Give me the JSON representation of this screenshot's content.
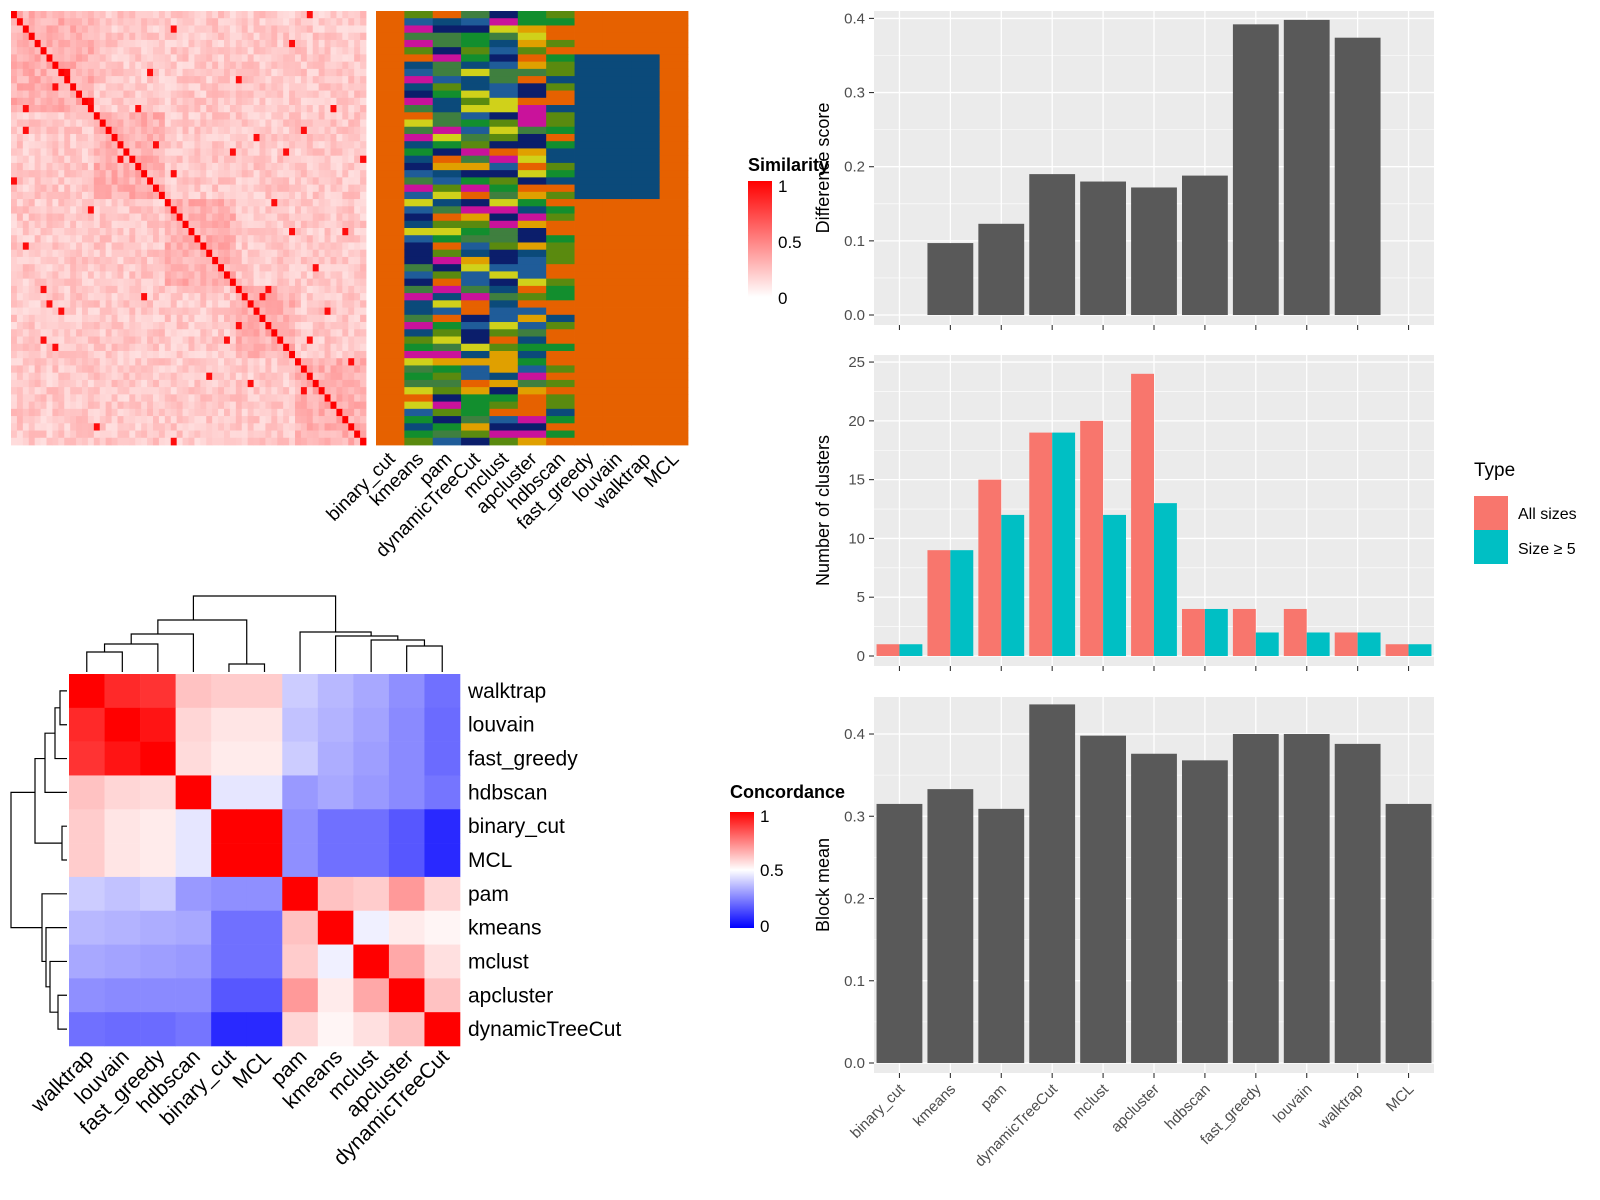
{
  "colors": {
    "bar_fill": "#595959",
    "all_sizes": "#F8766D",
    "size_ge_5": "#00BFC4",
    "panel_background": "#EBEBEB",
    "similarity_high": "#FF0000",
    "similarity_low": "#FFFFFF",
    "concordance_high": "#FF0000",
    "concordance_mid": "#FFFFFF",
    "concordance_low": "#0000FF",
    "class_palette": [
      "#E66100",
      "#0B4A7A",
      "#128E2E",
      "#5A8A0F",
      "#C9129B",
      "#D0D11A",
      "#0B1E6B",
      "#3F7F3F",
      "#1F5C99",
      "#E0A000"
    ]
  },
  "similarity_heatmap": {
    "legend_title": "Similarity",
    "legend_ticks": [
      "1",
      "0.5",
      "0"
    ],
    "class_columns": [
      "binary_cut",
      "kmeans",
      "pam",
      "dynamicTreeCut",
      "mclust",
      "apcluster",
      "hdbscan",
      "fast_greedy",
      "louvain",
      "walktrap",
      "MCL"
    ]
  },
  "concordance_heatmap": {
    "legend_title": "Concordance",
    "legend_ticks": [
      "1",
      "0.5",
      "0"
    ],
    "row_labels": [
      "walktrap",
      "louvain",
      "fast_greedy",
      "hdbscan",
      "binary_cut",
      "MCL",
      "pam",
      "kmeans",
      "mclust",
      "apcluster",
      "dynamicTreeCut"
    ],
    "column_labels": [
      "walktrap",
      "louvain",
      "fast_greedy",
      "hdbscan",
      "binary_cut",
      "MCL",
      "pam",
      "kmeans",
      "mclust",
      "apcluster",
      "dynamicTreeCut"
    ],
    "matrix": [
      [
        1.0,
        0.92,
        0.9,
        0.62,
        0.6,
        0.6,
        0.4,
        0.36,
        0.33,
        0.28,
        0.22
      ],
      [
        0.92,
        1.0,
        0.96,
        0.58,
        0.55,
        0.55,
        0.38,
        0.35,
        0.32,
        0.27,
        0.21
      ],
      [
        0.9,
        0.96,
        1.0,
        0.57,
        0.54,
        0.54,
        0.4,
        0.34,
        0.31,
        0.27,
        0.21
      ],
      [
        0.62,
        0.58,
        0.57,
        1.0,
        0.45,
        0.45,
        0.3,
        0.33,
        0.3,
        0.27,
        0.23
      ],
      [
        0.6,
        0.55,
        0.54,
        0.45,
        1.0,
        1.0,
        0.28,
        0.22,
        0.22,
        0.17,
        0.08
      ],
      [
        0.6,
        0.55,
        0.54,
        0.45,
        1.0,
        1.0,
        0.28,
        0.22,
        0.22,
        0.17,
        0.08
      ],
      [
        0.4,
        0.38,
        0.4,
        0.3,
        0.28,
        0.28,
        1.0,
        0.62,
        0.6,
        0.7,
        0.58
      ],
      [
        0.36,
        0.35,
        0.34,
        0.33,
        0.22,
        0.22,
        0.62,
        1.0,
        0.47,
        0.54,
        0.52
      ],
      [
        0.33,
        0.32,
        0.31,
        0.3,
        0.22,
        0.22,
        0.6,
        0.47,
        1.0,
        0.67,
        0.56
      ],
      [
        0.28,
        0.27,
        0.27,
        0.27,
        0.17,
        0.17,
        0.7,
        0.54,
        0.67,
        1.0,
        0.62
      ],
      [
        0.22,
        0.21,
        0.21,
        0.23,
        0.08,
        0.08,
        0.58,
        0.52,
        0.56,
        0.62,
        1.0
      ]
    ]
  },
  "chart_data": [
    {
      "type": "bar",
      "categories": [
        "binary_cut",
        "kmeans",
        "pam",
        "dynamicTreeCut",
        "mclust",
        "apcluster",
        "hdbscan",
        "fast_greedy",
        "louvain",
        "walktrap",
        "MCL"
      ],
      "values": [
        0,
        0.097,
        0.123,
        0.19,
        0.18,
        0.172,
        0.188,
        0.392,
        0.398,
        0.374,
        0
      ],
      "ylabel": "Difference score",
      "ylim": [
        0,
        0.41
      ],
      "yticks": [
        0.0,
        0.1,
        0.2,
        0.3,
        0.4
      ],
      "ytick_labels": [
        "0.0",
        "0.1",
        "0.2",
        "0.3",
        "0.4"
      ],
      "grid": true
    },
    {
      "type": "bar",
      "categories": [
        "binary_cut",
        "kmeans",
        "pam",
        "dynamicTreeCut",
        "mclust",
        "apcluster",
        "hdbscan",
        "fast_greedy",
        "louvain",
        "walktrap",
        "MCL"
      ],
      "series": [
        {
          "name": "All sizes",
          "values": [
            1,
            9,
            15,
            19,
            20,
            24,
            4,
            4,
            4,
            2,
            1
          ]
        },
        {
          "name": "Size ≥ 5",
          "values": [
            1,
            9,
            12,
            19,
            12,
            13,
            4,
            2,
            2,
            2,
            1
          ]
        }
      ],
      "ylabel": "Number of clusters",
      "ylim": [
        0,
        25.6
      ],
      "yticks": [
        0,
        5,
        10,
        15,
        20,
        25
      ],
      "ytick_labels": [
        "0",
        "5",
        "10",
        "15",
        "20",
        "25"
      ],
      "legend_title": "Type",
      "legend_position": "right",
      "grid": true
    },
    {
      "type": "bar",
      "categories": [
        "binary_cut",
        "kmeans",
        "pam",
        "dynamicTreeCut",
        "mclust",
        "apcluster",
        "hdbscan",
        "fast_greedy",
        "louvain",
        "walktrap",
        "MCL"
      ],
      "values": [
        0.315,
        0.333,
        0.309,
        0.436,
        0.398,
        0.376,
        0.368,
        0.4,
        0.4,
        0.388,
        0.315
      ],
      "ylabel": "Block mean",
      "ylim": [
        0,
        0.445
      ],
      "yticks": [
        0.0,
        0.1,
        0.2,
        0.3,
        0.4
      ],
      "ytick_labels": [
        "0.0",
        "0.1",
        "0.2",
        "0.3",
        "0.4"
      ],
      "grid": true
    }
  ]
}
